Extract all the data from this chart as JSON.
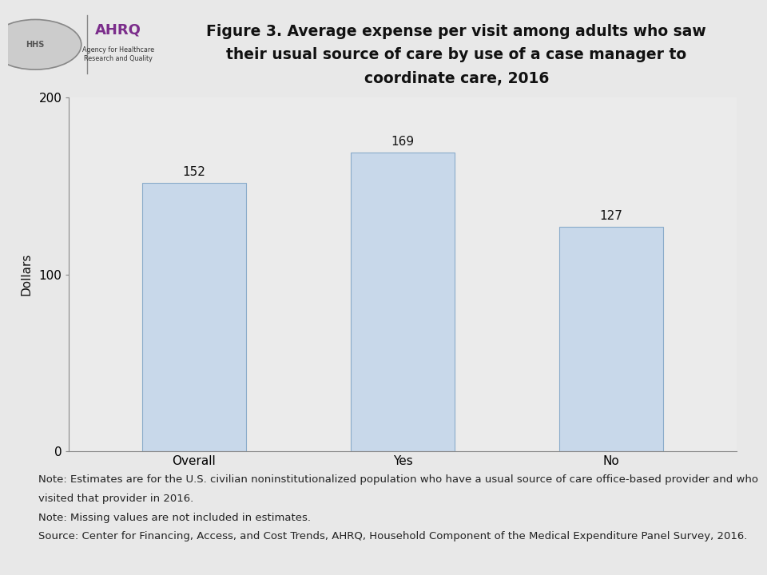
{
  "categories": [
    "Overall",
    "Yes",
    "No"
  ],
  "values": [
    152,
    169,
    127
  ],
  "bar_color": "#c8d8ea",
  "bar_edge_color": "#8aabca",
  "title_line1": "Figure 3. Average expense per visit among adults who saw",
  "title_line2": "their usual source of care by use of a case manager to",
  "title_line3": "coordinate care, 2016",
  "ylabel": "Dollars",
  "ylim": [
    0,
    200
  ],
  "yticks": [
    0,
    100,
    200
  ],
  "header_bg_color": "#d9d9d9",
  "chart_bg_color": "#e8e8e8",
  "plot_area_bg_color": "#ebebeb",
  "separator_color": "#aaaaaa",
  "note1": "Note: Estimates are for the U.S. civilian noninstitutionalized population who have a usual source of care office-based provider and who",
  "note2": "visited that provider in 2016.",
  "note3": "Note: Missing values are not included in estimates.",
  "note4": "Source: Center for Financing, Access, and Cost Trends, AHRQ, Household Component of the Medical Expenditure Panel Survey, 2016.",
  "title_fontsize": 13.5,
  "axis_fontsize": 11,
  "tick_fontsize": 11,
  "note_fontsize": 9.5,
  "bar_value_fontsize": 11,
  "ahrq_color": "#7b2d8b"
}
